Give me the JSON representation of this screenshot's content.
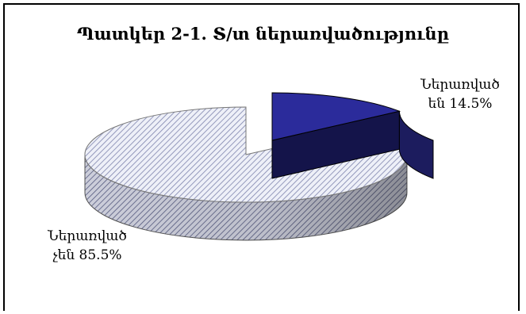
{
  "chart_data": {
    "type": "pie",
    "title": "Պատկեր 2-1. Տ/տ ներառվածությունը",
    "slices": [
      {
        "label_line1": "Ներառված",
        "label_line2": "են 14.5%",
        "value": 14.5,
        "color": "#2b2b9b",
        "pattern": "solid-exploded"
      },
      {
        "label_line1": "Ներառված",
        "label_line2": "չեն 85.5%",
        "value": 85.5,
        "color": "#c9cde0",
        "pattern": "diagonal-hatch"
      }
    ],
    "style": "3d-exploded-pie",
    "legend": "none"
  }
}
